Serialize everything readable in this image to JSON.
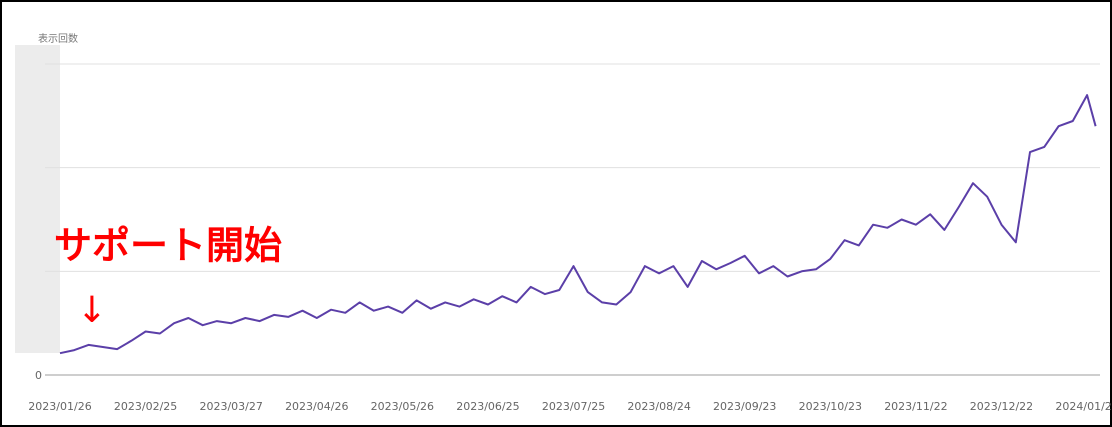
{
  "chart_data": {
    "type": "line",
    "y_axis_label": "表示回数",
    "annotation": "サポート開始",
    "annotation_arrow": "↓",
    "x": [
      "2023/01/26",
      "2023/01/31",
      "2023/02/05",
      "2023/02/10",
      "2023/02/15",
      "2023/02/20",
      "2023/02/25",
      "2023/03/02",
      "2023/03/07",
      "2023/03/12",
      "2023/03/17",
      "2023/03/22",
      "2023/03/27",
      "2023/04/01",
      "2023/04/06",
      "2023/04/11",
      "2023/04/16",
      "2023/04/21",
      "2023/04/26",
      "2023/05/01",
      "2023/05/06",
      "2023/05/11",
      "2023/05/16",
      "2023/05/21",
      "2023/05/26",
      "2023/05/31",
      "2023/06/05",
      "2023/06/10",
      "2023/06/15",
      "2023/06/20",
      "2023/06/25",
      "2023/06/30",
      "2023/07/05",
      "2023/07/10",
      "2023/07/15",
      "2023/07/20",
      "2023/07/25",
      "2023/07/30",
      "2023/08/04",
      "2023/08/09",
      "2023/08/14",
      "2023/08/19",
      "2023/08/24",
      "2023/08/29",
      "2023/09/03",
      "2023/09/08",
      "2023/09/13",
      "2023/09/18",
      "2023/09/23",
      "2023/09/28",
      "2023/10/03",
      "2023/10/08",
      "2023/10/13",
      "2023/10/18",
      "2023/10/23",
      "2023/10/28",
      "2023/11/02",
      "2023/11/07",
      "2023/11/12",
      "2023/11/17",
      "2023/11/22",
      "2023/11/27",
      "2023/12/02",
      "2023/12/07",
      "2023/12/12",
      "2023/12/17",
      "2023/12/22",
      "2023/12/27",
      "2024/01/01",
      "2024/01/06",
      "2024/01/11",
      "2024/01/16",
      "2024/01/21",
      "2024/01/24"
    ],
    "series": [
      {
        "color": "#5b3fa8",
        "values": [
          0.21,
          0.24,
          0.29,
          0.27,
          0.25,
          0.33,
          0.42,
          0.4,
          0.5,
          0.55,
          0.48,
          0.52,
          0.5,
          0.55,
          0.52,
          0.58,
          0.56,
          0.62,
          0.55,
          0.63,
          0.6,
          0.7,
          0.62,
          0.66,
          0.6,
          0.72,
          0.64,
          0.7,
          0.66,
          0.73,
          0.68,
          0.76,
          0.7,
          0.85,
          0.78,
          0.82,
          1.05,
          0.8,
          0.7,
          0.68,
          0.8,
          1.05,
          0.98,
          1.05,
          0.85,
          1.1,
          1.02,
          1.08,
          1.15,
          0.98,
          1.05,
          0.95,
          1.0,
          1.02,
          1.12,
          1.3,
          1.25,
          1.45,
          1.42,
          1.5,
          1.45,
          1.55,
          1.4,
          1.62,
          1.85,
          1.72,
          1.45,
          1.28,
          2.15,
          2.2,
          2.4,
          2.45,
          2.7,
          2.4
        ]
      }
    ],
    "xticks": [
      "2023/01/26",
      "2023/02/25",
      "2023/03/27",
      "2023/04/26",
      "2023/05/26",
      "2023/06/25",
      "2023/07/25",
      "2023/08/24",
      "2023/09/23",
      "2023/10/23",
      "2023/11/22",
      "2023/12/22",
      "2024/01/21"
    ],
    "ylim": [
      0,
      3
    ],
    "yticks": [
      0
    ],
    "ygrid": [
      1,
      2,
      3
    ],
    "grid": true
  }
}
